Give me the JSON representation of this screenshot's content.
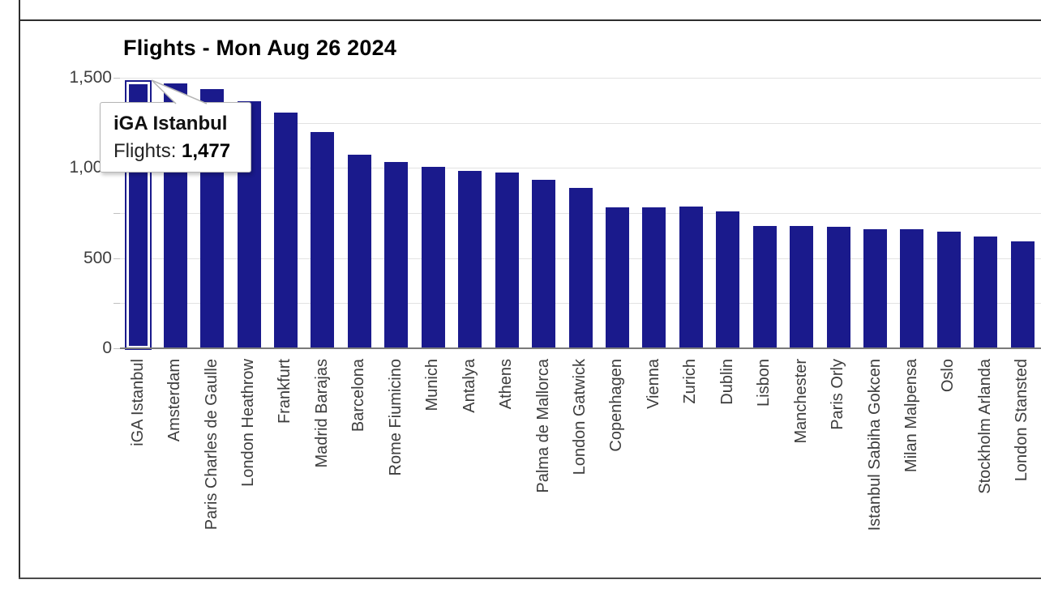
{
  "chart_data": {
    "type": "bar",
    "title": "Flights - Mon Aug 26 2024",
    "categories": [
      "iGA Istanbul",
      "Amsterdam",
      "Paris Charles de Gaulle",
      "London Heathrow",
      "Frankfurt",
      "Madrid Barajas",
      "Barcelona",
      "Rome Fiumicino",
      "Munich",
      "Antalya",
      "Athens",
      "Palma de Mallorca",
      "London Gatwick",
      "Copenhagen",
      "Vienna",
      "Zurich",
      "Dublin",
      "Lisbon",
      "Manchester",
      "Paris Orly",
      "Istanbul Sabiha Gokcen",
      "Milan Malpensa",
      "Oslo",
      "Stockholm Arlanda",
      "London Stansted"
    ],
    "values": [
      1477,
      1470,
      1435,
      1370,
      1305,
      1200,
      1075,
      1035,
      1005,
      985,
      975,
      935,
      890,
      780,
      780,
      785,
      760,
      680,
      680,
      675,
      660,
      660,
      645,
      620,
      595
    ],
    "xlabel": "",
    "ylabel": "",
    "ylim": [
      0,
      1500
    ],
    "yticks": [
      {
        "value": 0,
        "label": "0"
      },
      {
        "value": 500,
        "label": "500"
      },
      {
        "value": 1000,
        "label": "1,000"
      },
      {
        "value": 1500,
        "label": "1,500"
      }
    ],
    "minor_grid_values": [
      250,
      750,
      1250
    ],
    "grid": true,
    "legend": false,
    "bar_color": "#1A1A8C",
    "selected_index": 0,
    "selected_highlight_color": "#FFFFFF"
  },
  "tooltip": {
    "title": "iGA Istanbul",
    "series_label": "Flights: ",
    "value": "1,477"
  }
}
